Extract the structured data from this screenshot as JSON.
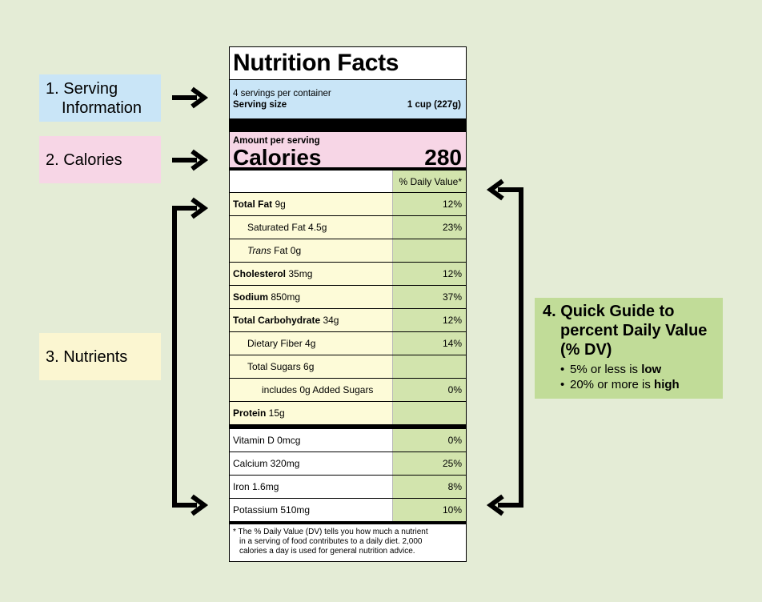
{
  "callouts": {
    "serving": {
      "number": "1.",
      "line1": "Serving",
      "line2": "Information"
    },
    "calories": {
      "label": "2. Calories"
    },
    "nutrients": {
      "label": "3. Nutrients"
    }
  },
  "guide": {
    "title_line1": "4. Quick Guide to",
    "title_line2": "percent Daily Value",
    "title_line3": "(% DV)",
    "bullet1_text": "5% or less is ",
    "bullet1_bold": "low",
    "bullet2_text": "20% or more is ",
    "bullet2_bold": "high"
  },
  "label": {
    "title": "Nutrition Facts",
    "servings_per_container": "4 servings per container",
    "serving_size_label": "Serving size",
    "serving_size_value": "1 cup (227g)",
    "amount_per_serving": "Amount per serving",
    "calories_label": "Calories",
    "calories_value": "280",
    "dv_header": "% Daily Value*",
    "nutrients": [
      {
        "bold": "Total Fat",
        "italic": "",
        "rest": " 9g",
        "dv": "12%"
      },
      {
        "bold": "",
        "italic": "",
        "rest": "Saturated Fat 4.5g",
        "dv": "23%"
      },
      {
        "bold": "",
        "italic": "Trans",
        "rest": " Fat 0g",
        "dv": ""
      },
      {
        "bold": "Cholesterol",
        "italic": "",
        "rest": " 35mg",
        "dv": "12%"
      },
      {
        "bold": "Sodium",
        "italic": "",
        "rest": " 850mg",
        "dv": "37%"
      },
      {
        "bold": "Total Carbohydrate",
        "italic": "",
        "rest": " 34g",
        "dv": "12%"
      },
      {
        "bold": "",
        "italic": "",
        "rest": "Dietary Fiber 4g",
        "dv": "14%"
      },
      {
        "bold": "",
        "italic": "",
        "rest": "Total Sugars 6g",
        "dv": ""
      },
      {
        "bold": "",
        "italic": "",
        "rest": "includes 0g Added Sugars",
        "dv": "0%"
      },
      {
        "bold": "Protein",
        "italic": "",
        "rest": " 15g",
        "dv": ""
      }
    ],
    "vitamins": [
      {
        "name": "Vitamin D 0mcg",
        "dv": "0%"
      },
      {
        "name": "Calcium 320mg",
        "dv": "25%"
      },
      {
        "name": "Iron 1.6mg",
        "dv": "8%"
      },
      {
        "name": "Potassium 510mg",
        "dv": "10%"
      }
    ],
    "footnote_line1": "* The % Daily Value (DV) tells you how much a nutrient",
    "footnote_line2": "in a serving of food contributes to a daily diet. 2,000",
    "footnote_line3": "calories a day is used for general nutrition advice."
  },
  "colors": {
    "background": "#e4ecd6",
    "serving": "#c9e5f7",
    "calories": "#f7d6e6",
    "nutrients": "#fbf6d1",
    "daily_value": "#c1dc98"
  }
}
